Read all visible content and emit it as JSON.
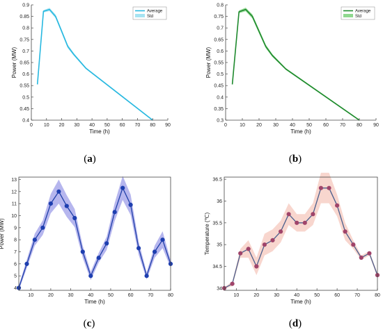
{
  "chart_data": [
    {
      "id": "a",
      "caption_letter": "a",
      "type": "line",
      "xlabel": "Time (h)",
      "ylabel": "Power (MW)",
      "xlim": [
        0,
        90
      ],
      "ylim": [
        0.4,
        0.9
      ],
      "xticks": [
        0,
        10,
        20,
        30,
        40,
        50,
        60,
        70,
        80,
        90
      ],
      "yticks": [
        0.4,
        0.45,
        0.5,
        0.55,
        0.6,
        0.65,
        0.7,
        0.75,
        0.8,
        0.85,
        0.9
      ],
      "grid": false,
      "legend": "top-right",
      "legend_entries": [
        "Average",
        "Std"
      ],
      "colors": {
        "line": "#27b8e0",
        "band": "#a6e3f2"
      },
      "x": [
        4,
        8,
        12,
        16,
        20,
        24,
        28,
        36,
        80
      ],
      "y": [
        0.555,
        0.872,
        0.88,
        0.85,
        0.785,
        0.72,
        0.685,
        0.625,
        0.4
      ],
      "std": [
        0.003,
        0.005,
        0.007,
        0.008,
        0.008,
        0.008,
        0.006,
        0.004,
        0.003
      ]
    },
    {
      "id": "b",
      "caption_letter": "b",
      "type": "line",
      "xlabel": "Time (h)",
      "ylabel": "Power (MW)",
      "xlim": [
        0,
        90
      ],
      "ylim": [
        0.3,
        0.8
      ],
      "xticks": [
        0,
        10,
        20,
        30,
        40,
        50,
        60,
        70,
        80,
        90
      ],
      "yticks": [
        0.3,
        0.35,
        0.4,
        0.45,
        0.5,
        0.55,
        0.6,
        0.65,
        0.7,
        0.75,
        0.8
      ],
      "grid": false,
      "legend": "top-right",
      "legend_entries": [
        "Average",
        "Std"
      ],
      "colors": {
        "line": "#1f8a2e",
        "band": "#8fd88f"
      },
      "x": [
        4,
        8,
        12,
        16,
        20,
        24,
        28,
        36,
        80
      ],
      "y": [
        0.455,
        0.77,
        0.78,
        0.75,
        0.685,
        0.62,
        0.58,
        0.522,
        0.3
      ],
      "std": [
        0.004,
        0.006,
        0.008,
        0.009,
        0.009,
        0.008,
        0.006,
        0.004,
        0.003
      ]
    },
    {
      "id": "c",
      "caption_letter": "c",
      "type": "line",
      "xlabel": "Time (h)",
      "ylabel": "Power (MW)",
      "xlim": [
        4,
        80
      ],
      "ylim": [
        3.8,
        13.2
      ],
      "xticks": [
        10,
        20,
        30,
        40,
        50,
        60,
        70,
        80
      ],
      "yticks": [
        4,
        5,
        6,
        7,
        8,
        9,
        10,
        11,
        12,
        13
      ],
      "grid": false,
      "legend": "none",
      "colors": {
        "line": "#1f3fa8",
        "marker": "#1e3fb0",
        "band": "#9e9ee8"
      },
      "x": [
        4,
        8,
        12,
        16,
        20,
        24,
        28,
        32,
        36,
        40,
        44,
        48,
        52,
        56,
        60,
        64,
        68,
        72,
        76,
        80
      ],
      "y": [
        4,
        6,
        8,
        9,
        11,
        12,
        10.8,
        9.8,
        7,
        5,
        6.5,
        7.7,
        10.3,
        12.3,
        10.9,
        7.3,
        5,
        7,
        8,
        6
      ],
      "std": [
        0.2,
        0.35,
        0.5,
        0.6,
        0.8,
        1.0,
        0.9,
        0.75,
        0.5,
        0.35,
        0.4,
        0.55,
        0.75,
        1.0,
        0.85,
        0.55,
        0.3,
        0.5,
        0.7,
        0.3
      ]
    },
    {
      "id": "d",
      "caption_letter": "d",
      "type": "line",
      "xlabel": "Time (h)",
      "ylabel": "Temperature (℃)",
      "xlim": [
        4,
        80
      ],
      "ylim": [
        33.95,
        36.55
      ],
      "xticks": [
        10,
        20,
        30,
        40,
        50,
        60,
        70,
        80
      ],
      "yticks": [
        34,
        34.5,
        35,
        35.5,
        36,
        36.5
      ],
      "grid": false,
      "legend": "none",
      "colors": {
        "line": "#4a5e8c",
        "marker": "#a0446a",
        "band": "#f6c8bd"
      },
      "x": [
        4,
        8,
        12,
        16,
        20,
        24,
        28,
        32,
        36,
        40,
        44,
        48,
        52,
        56,
        60,
        64,
        68,
        72,
        76,
        80
      ],
      "y": [
        34.0,
        34.1,
        34.8,
        34.9,
        34.5,
        35.0,
        35.1,
        35.3,
        35.7,
        35.5,
        35.5,
        35.7,
        36.3,
        36.3,
        35.9,
        35.3,
        35.0,
        34.7,
        34.8,
        34.3
      ],
      "std": [
        0.02,
        0.05,
        0.1,
        0.2,
        0.2,
        0.25,
        0.25,
        0.25,
        0.25,
        0.2,
        0.2,
        0.25,
        0.35,
        0.35,
        0.25,
        0.2,
        0.1,
        0.05,
        0.05,
        0.05
      ]
    }
  ]
}
